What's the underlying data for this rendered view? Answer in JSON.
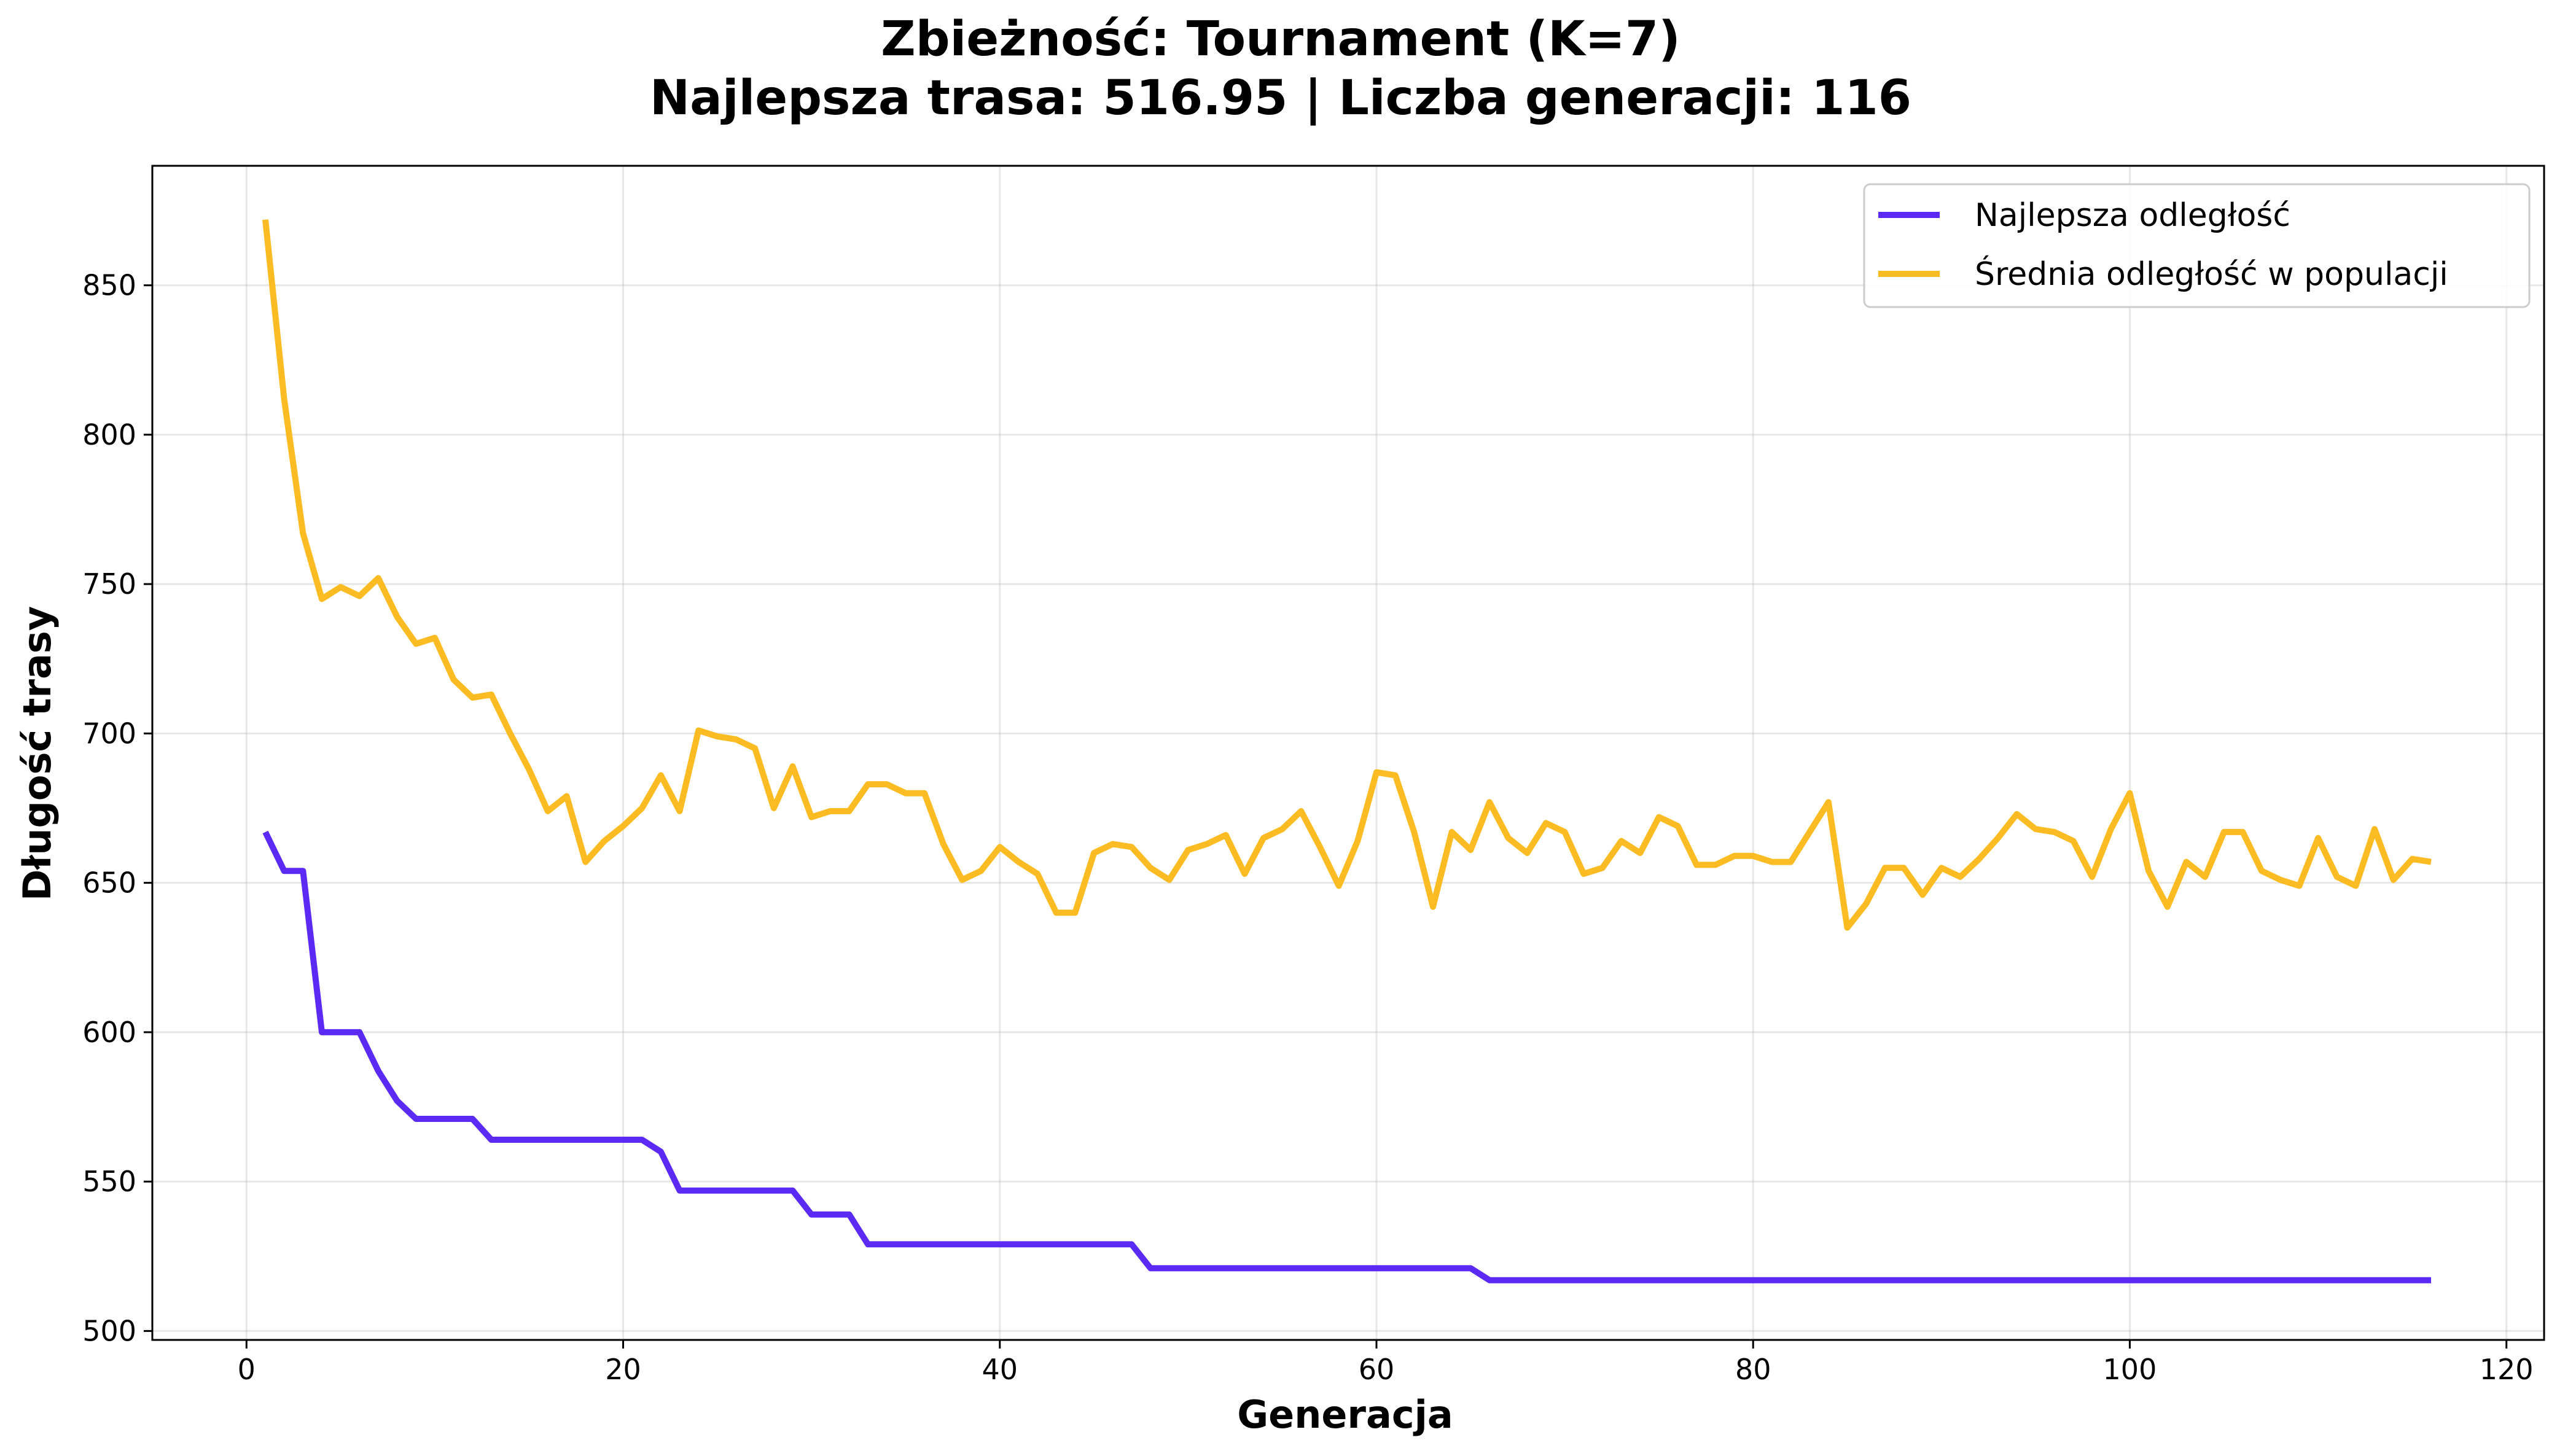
{
  "chart_data": {
    "type": "line",
    "title": "Zbieżność: Tournament (K=7)",
    "subtitle": "Najlepsza trasa: 516.95 | Liczba generacji: 116",
    "xlabel": "Generacja",
    "ylabel": "Długość trasy",
    "xlim": [
      -5,
      122
    ],
    "ylim": [
      497,
      890
    ],
    "xticks": [
      0,
      20,
      40,
      60,
      80,
      100,
      120
    ],
    "yticks": [
      500,
      550,
      600,
      650,
      700,
      750,
      800,
      850
    ],
    "grid": true,
    "legend_position": "top-right",
    "series": [
      {
        "name": "Najlepsza odległość",
        "color": "#5b2bf5",
        "x": [
          1,
          2,
          3,
          4,
          5,
          6,
          7,
          8,
          9,
          10,
          11,
          12,
          13,
          14,
          15,
          16,
          17,
          18,
          19,
          20,
          21,
          22,
          23,
          24,
          25,
          26,
          27,
          28,
          29,
          30,
          31,
          32,
          33,
          34,
          35,
          36,
          37,
          38,
          39,
          40,
          41,
          42,
          43,
          44,
          45,
          46,
          47,
          48,
          49,
          50,
          51,
          52,
          53,
          54,
          55,
          56,
          57,
          58,
          59,
          60,
          61,
          62,
          63,
          64,
          65,
          66,
          67,
          68,
          69,
          70,
          71,
          72,
          73,
          74,
          75,
          76,
          77,
          78,
          79,
          80,
          81,
          82,
          83,
          84,
          85,
          86,
          87,
          88,
          89,
          90,
          91,
          92,
          93,
          94,
          95,
          96,
          97,
          98,
          99,
          100,
          101,
          102,
          103,
          104,
          105,
          106,
          107,
          108,
          109,
          110,
          111,
          112,
          113,
          114,
          115,
          116
        ],
        "values": [
          667,
          654,
          654,
          600,
          600,
          600,
          587,
          577,
          571,
          571,
          571,
          571,
          564,
          564,
          564,
          564,
          564,
          564,
          564,
          564,
          564,
          560,
          547,
          547,
          547,
          547,
          547,
          547,
          547,
          539,
          539,
          539,
          529,
          529,
          529,
          529,
          529,
          529,
          529,
          529,
          529,
          529,
          529,
          529,
          529,
          529,
          529,
          521,
          521,
          521,
          521,
          521,
          521,
          521,
          521,
          521,
          521,
          521,
          521,
          521,
          521,
          521,
          521,
          521,
          521,
          517,
          517,
          517,
          517,
          517,
          517,
          517,
          517,
          517,
          517,
          517,
          517,
          517,
          517,
          517,
          517,
          517,
          517,
          517,
          517,
          517,
          517,
          517,
          517,
          517,
          517,
          517,
          517,
          517,
          517,
          517,
          517,
          517,
          517,
          517,
          517,
          517,
          517,
          517,
          517,
          517,
          517,
          517,
          517,
          517,
          517,
          517,
          517,
          517,
          517,
          517
        ]
      },
      {
        "name": "Średnia odległość w populacji",
        "color": "#fbbc23",
        "x": [
          1,
          2,
          3,
          4,
          5,
          6,
          7,
          8,
          9,
          10,
          11,
          12,
          13,
          14,
          15,
          16,
          17,
          18,
          19,
          20,
          21,
          22,
          23,
          24,
          25,
          26,
          27,
          28,
          29,
          30,
          31,
          32,
          33,
          34,
          35,
          36,
          37,
          38,
          39,
          40,
          41,
          42,
          43,
          44,
          45,
          46,
          47,
          48,
          49,
          50,
          51,
          52,
          53,
          54,
          55,
          56,
          57,
          58,
          59,
          60,
          61,
          62,
          63,
          64,
          65,
          66,
          67,
          68,
          69,
          70,
          71,
          72,
          73,
          74,
          75,
          76,
          77,
          78,
          79,
          80,
          81,
          82,
          83,
          84,
          85,
          86,
          87,
          88,
          89,
          90,
          91,
          92,
          93,
          94,
          95,
          96,
          97,
          98,
          99,
          100,
          101,
          102,
          103,
          104,
          105,
          106,
          107,
          108,
          109,
          110,
          111,
          112,
          113,
          114,
          115,
          116
        ],
        "values": [
          872,
          812,
          767,
          745,
          749,
          746,
          752,
          739,
          730,
          732,
          718,
          712,
          713,
          700,
          688,
          674,
          679,
          657,
          664,
          669,
          675,
          686,
          674,
          701,
          699,
          698,
          695,
          675,
          689,
          672,
          674,
          674,
          683,
          683,
          680,
          680,
          663,
          651,
          654,
          662,
          657,
          653,
          640,
          640,
          660,
          663,
          662,
          655,
          651,
          661,
          663,
          666,
          653,
          665,
          668,
          674,
          662,
          649,
          664,
          687,
          686,
          667,
          642,
          667,
          661,
          677,
          665,
          660,
          670,
          667,
          653,
          655,
          664,
          660,
          672,
          669,
          656,
          656,
          659,
          659,
          657,
          657,
          667,
          677,
          635,
          643,
          655,
          655,
          646,
          655,
          652,
          658,
          665,
          673,
          668,
          667,
          664,
          652,
          668,
          680,
          654,
          642,
          657,
          652,
          667,
          667,
          654,
          651,
          649,
          665,
          652,
          649,
          668,
          651,
          658,
          657
        ]
      }
    ]
  }
}
